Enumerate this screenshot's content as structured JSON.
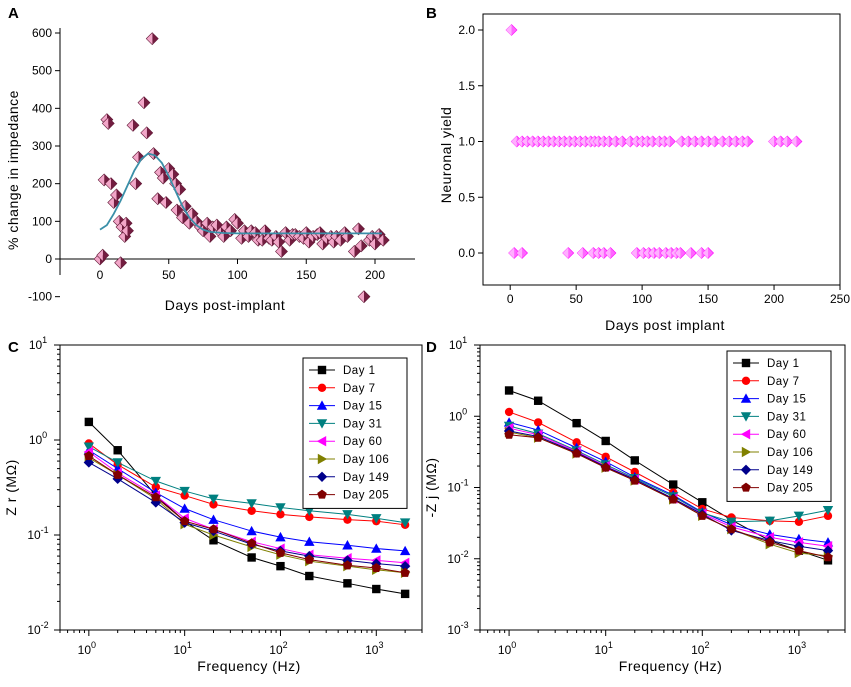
{
  "chart_data": [
    {
      "id": "A",
      "type": "scatter",
      "title": "",
      "xlabel": "Days post-implant",
      "ylabel": "% change in impedance",
      "xlim": [
        -15,
        215
      ],
      "ylim": [
        -130,
        610
      ],
      "xticks": [
        0,
        50,
        100,
        150,
        200
      ],
      "yticks": [
        -100,
        0,
        100,
        200,
        300,
        400,
        500,
        600
      ],
      "marker_color": "#c0306a",
      "fit_color": "#3a8fa8",
      "points": [
        [
          0,
          0
        ],
        [
          2,
          10
        ],
        [
          3,
          210
        ],
        [
          5,
          370
        ],
        [
          6,
          360
        ],
        [
          8,
          200
        ],
        [
          10,
          150
        ],
        [
          12,
          170
        ],
        [
          14,
          100
        ],
        [
          15,
          -10
        ],
        [
          16,
          85
        ],
        [
          18,
          60
        ],
        [
          19,
          95
        ],
        [
          20,
          75
        ],
        [
          24,
          355
        ],
        [
          26,
          200
        ],
        [
          28,
          270
        ],
        [
          32,
          415
        ],
        [
          34,
          335
        ],
        [
          38,
          585
        ],
        [
          39,
          280
        ],
        [
          42,
          160
        ],
        [
          44,
          230
        ],
        [
          46,
          215
        ],
        [
          48,
          150
        ],
        [
          50,
          240
        ],
        [
          53,
          225
        ],
        [
          55,
          200
        ],
        [
          56,
          130
        ],
        [
          58,
          185
        ],
        [
          60,
          110
        ],
        [
          62,
          140
        ],
        [
          65,
          95
        ],
        [
          67,
          120
        ],
        [
          70,
          100
        ],
        [
          73,
          85
        ],
        [
          75,
          75
        ],
        [
          78,
          95
        ],
        [
          80,
          60
        ],
        [
          82,
          85
        ],
        [
          85,
          90
        ],
        [
          88,
          70
        ],
        [
          90,
          60
        ],
        [
          92,
          85
        ],
        [
          95,
          75
        ],
        [
          98,
          105
        ],
        [
          100,
          95
        ],
        [
          103,
          55
        ],
        [
          105,
          75
        ],
        [
          108,
          60
        ],
        [
          110,
          75
        ],
        [
          113,
          70
        ],
        [
          115,
          50
        ],
        [
          118,
          50
        ],
        [
          120,
          75
        ],
        [
          123,
          55
        ],
        [
          125,
          50
        ],
        [
          128,
          60
        ],
        [
          130,
          45
        ],
        [
          132,
          20
        ],
        [
          135,
          70
        ],
        [
          138,
          50
        ],
        [
          140,
          65
        ],
        [
          142,
          65
        ],
        [
          145,
          60
        ],
        [
          148,
          55
        ],
        [
          150,
          70
        ],
        [
          152,
          45
        ],
        [
          155,
          60
        ],
        [
          158,
          65
        ],
        [
          160,
          70
        ],
        [
          162,
          40
        ],
        [
          165,
          55
        ],
        [
          168,
          60
        ],
        [
          170,
          45
        ],
        [
          172,
          60
        ],
        [
          175,
          50
        ],
        [
          178,
          70
        ],
        [
          180,
          60
        ],
        [
          185,
          20
        ],
        [
          188,
          80
        ],
        [
          190,
          35
        ],
        [
          192,
          -100
        ],
        [
          196,
          50
        ],
        [
          198,
          60
        ],
        [
          200,
          40
        ],
        [
          203,
          65
        ],
        [
          206,
          50
        ]
      ],
      "fit": [
        [
          0,
          78
        ],
        [
          5,
          90
        ],
        [
          10,
          120
        ],
        [
          15,
          155
        ],
        [
          20,
          195
        ],
        [
          25,
          235
        ],
        [
          30,
          265
        ],
        [
          35,
          280
        ],
        [
          40,
          275
        ],
        [
          45,
          255
        ],
        [
          50,
          220
        ],
        [
          55,
          180
        ],
        [
          60,
          140
        ],
        [
          65,
          110
        ],
        [
          70,
          90
        ],
        [
          75,
          78
        ],
        [
          80,
          72
        ],
        [
          90,
          69
        ],
        [
          100,
          68
        ],
        [
          120,
          68
        ],
        [
          150,
          68
        ],
        [
          180,
          68
        ],
        [
          205,
          68
        ]
      ]
    },
    {
      "id": "B",
      "type": "scatter",
      "title": "",
      "xlabel": "Days post implant",
      "ylabel": "Neuronal yield",
      "xlim": [
        -25,
        250
      ],
      "ylim": [
        -0.2,
        2.15
      ],
      "xticks": [
        0,
        50,
        100,
        150,
        200,
        250
      ],
      "yticks": [
        0.0,
        0.5,
        1.0,
        1.5,
        2.0
      ],
      "ytick_labels": [
        "0.0",
        "0.5",
        "1.0",
        "1.5",
        "2.0"
      ],
      "marker_color": "#ff40ff",
      "points": [
        [
          1,
          2
        ],
        [
          5,
          1
        ],
        [
          9,
          1
        ],
        [
          13,
          1
        ],
        [
          17,
          1
        ],
        [
          21,
          1
        ],
        [
          25,
          1
        ],
        [
          29,
          1
        ],
        [
          33,
          1
        ],
        [
          37,
          1
        ],
        [
          41,
          1
        ],
        [
          45,
          1
        ],
        [
          49,
          1
        ],
        [
          53,
          1
        ],
        [
          57,
          1
        ],
        [
          61,
          1
        ],
        [
          64,
          1
        ],
        [
          67,
          1
        ],
        [
          71,
          1
        ],
        [
          75,
          1
        ],
        [
          80,
          1
        ],
        [
          85,
          1
        ],
        [
          91,
          1
        ],
        [
          96,
          1
        ],
        [
          100,
          1
        ],
        [
          104,
          1
        ],
        [
          108,
          1
        ],
        [
          113,
          1
        ],
        [
          117,
          1
        ],
        [
          121,
          1
        ],
        [
          130,
          1
        ],
        [
          135,
          1
        ],
        [
          140,
          1
        ],
        [
          145,
          1
        ],
        [
          150,
          1
        ],
        [
          155,
          1
        ],
        [
          161,
          1
        ],
        [
          166,
          1
        ],
        [
          171,
          1
        ],
        [
          176,
          1
        ],
        [
          180,
          1
        ],
        [
          200,
          1
        ],
        [
          205,
          1
        ],
        [
          210,
          1
        ],
        [
          217,
          1
        ],
        [
          3,
          0
        ],
        [
          9,
          0
        ],
        [
          44,
          0
        ],
        [
          55,
          0
        ],
        [
          63,
          0
        ],
        [
          67,
          0
        ],
        [
          71,
          0
        ],
        [
          76,
          0
        ],
        [
          96,
          0
        ],
        [
          101,
          0
        ],
        [
          105,
          0
        ],
        [
          109,
          0
        ],
        [
          113,
          0
        ],
        [
          118,
          0
        ],
        [
          122,
          0
        ],
        [
          126,
          0
        ],
        [
          129,
          0
        ],
        [
          137,
          0
        ],
        [
          145,
          0
        ],
        [
          150,
          0
        ]
      ]
    },
    {
      "id": "C",
      "type": "line",
      "xscale": "log",
      "yscale": "log",
      "xlabel": "Frequency (Hz)",
      "ylabel": "Z r (MΩ)",
      "xlim": [
        0.5,
        3000
      ],
      "ylim": [
        0.01,
        10
      ],
      "x": [
        1,
        2,
        5,
        10,
        20,
        50,
        100,
        200,
        500,
        1000,
        2000
      ],
      "xtick_base": "10",
      "xtick_exps": [
        "0",
        "1",
        "2",
        "3"
      ],
      "ytick_exps": [
        "-2",
        "-1",
        "0",
        "1"
      ],
      "series": [
        {
          "name": "Day 1",
          "color": "#000000",
          "marker": "square",
          "values": [
            1.55,
            0.78,
            0.26,
            0.14,
            0.088,
            0.058,
            0.047,
            0.037,
            0.031,
            0.027,
            0.024
          ]
        },
        {
          "name": "Day 7",
          "color": "#ff0000",
          "marker": "circle",
          "values": [
            0.92,
            0.55,
            0.32,
            0.26,
            0.21,
            0.18,
            0.165,
            0.155,
            0.145,
            0.14,
            0.128
          ]
        },
        {
          "name": "Day 15",
          "color": "#0000ff",
          "marker": "triangle-up",
          "values": [
            0.78,
            0.5,
            0.28,
            0.19,
            0.145,
            0.11,
            0.095,
            0.085,
            0.078,
            0.072,
            0.068
          ]
        },
        {
          "name": "Day 31",
          "color": "#008080",
          "marker": "triangle-down",
          "values": [
            0.85,
            0.58,
            0.37,
            0.29,
            0.24,
            0.215,
            0.195,
            0.18,
            0.165,
            0.15,
            0.135
          ]
        },
        {
          "name": "Day 60",
          "color": "#ff00ff",
          "marker": "triangle-left",
          "values": [
            0.75,
            0.45,
            0.26,
            0.15,
            0.115,
            0.085,
            0.072,
            0.062,
            0.057,
            0.054,
            0.051
          ]
        },
        {
          "name": "Day 106",
          "color": "#808000",
          "marker": "triangle-right",
          "values": [
            0.65,
            0.43,
            0.24,
            0.13,
            0.1,
            0.075,
            0.062,
            0.053,
            0.047,
            0.043,
            0.04
          ]
        },
        {
          "name": "Day 149",
          "color": "#00008b",
          "marker": "diamond",
          "values": [
            0.58,
            0.39,
            0.22,
            0.135,
            0.11,
            0.08,
            0.068,
            0.06,
            0.054,
            0.05,
            0.047
          ]
        },
        {
          "name": "Day 205",
          "color": "#800000",
          "marker": "pentagon",
          "values": [
            0.68,
            0.43,
            0.25,
            0.14,
            0.115,
            0.082,
            0.065,
            0.055,
            0.048,
            0.045,
            0.04
          ]
        }
      ]
    },
    {
      "id": "D",
      "type": "line",
      "xscale": "log",
      "yscale": "log",
      "xlabel": "Frequency (Hz)",
      "ylabel": "-Z j (MΩ)",
      "xlim": [
        0.5,
        3000
      ],
      "ylim": [
        0.001,
        10
      ],
      "x": [
        1,
        2,
        5,
        10,
        20,
        50,
        100,
        200,
        500,
        1000,
        2000
      ],
      "xtick_base": "10",
      "xtick_exps": [
        "0",
        "1",
        "2",
        "3"
      ],
      "ytick_exps": [
        "-3",
        "-2",
        "-1",
        "0",
        "1"
      ],
      "series": [
        {
          "name": "Day 1",
          "color": "#000000",
          "marker": "square",
          "values": [
            2.3,
            1.65,
            0.8,
            0.45,
            0.24,
            0.11,
            0.062,
            0.035,
            0.018,
            0.013,
            0.0095
          ]
        },
        {
          "name": "Day 7",
          "color": "#ff0000",
          "marker": "circle",
          "values": [
            1.15,
            0.82,
            0.43,
            0.27,
            0.165,
            0.085,
            0.05,
            0.038,
            0.034,
            0.033,
            0.04
          ]
        },
        {
          "name": "Day 15",
          "color": "#0000ff",
          "marker": "triangle-up",
          "values": [
            0.82,
            0.64,
            0.36,
            0.23,
            0.14,
            0.078,
            0.045,
            0.03,
            0.022,
            0.019,
            0.017
          ]
        },
        {
          "name": "Day 31",
          "color": "#008080",
          "marker": "triangle-down",
          "values": [
            0.73,
            0.57,
            0.33,
            0.21,
            0.135,
            0.075,
            0.044,
            0.033,
            0.034,
            0.04,
            0.048
          ]
        },
        {
          "name": "Day 60",
          "color": "#ff00ff",
          "marker": "triangle-left",
          "values": [
            0.68,
            0.55,
            0.32,
            0.2,
            0.13,
            0.07,
            0.043,
            0.028,
            0.02,
            0.017,
            0.015
          ]
        },
        {
          "name": "Day 106",
          "color": "#808000",
          "marker": "triangle-right",
          "values": [
            0.6,
            0.5,
            0.3,
            0.19,
            0.125,
            0.068,
            0.04,
            0.026,
            0.016,
            0.012,
            0.011
          ]
        },
        {
          "name": "Day 149",
          "color": "#00008b",
          "marker": "diamond",
          "values": [
            0.62,
            0.52,
            0.31,
            0.195,
            0.13,
            0.07,
            0.042,
            0.025,
            0.018,
            0.015,
            0.013
          ]
        },
        {
          "name": "Day 205",
          "color": "#800000",
          "marker": "pentagon",
          "values": [
            0.55,
            0.5,
            0.3,
            0.19,
            0.125,
            0.068,
            0.04,
            0.026,
            0.017,
            0.013,
            0.0105
          ]
        }
      ]
    }
  ]
}
